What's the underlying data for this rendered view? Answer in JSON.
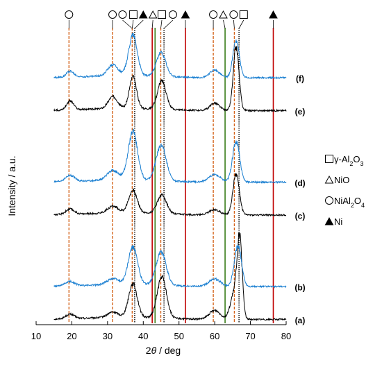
{
  "chart_data": {
    "type": "line",
    "title": "",
    "xlabel_parts": [
      "2",
      "θ",
      " / deg"
    ],
    "ylabel": "Intensity / a.u.",
    "xlim": [
      10,
      80
    ],
    "xticks": [
      10,
      20,
      30,
      40,
      50,
      60,
      70,
      80
    ],
    "series": [
      {
        "name": "(a)",
        "color": "#000000",
        "offset": 0.0,
        "peaks": [
          [
            19.5,
            0.06,
            1.2
          ],
          [
            31.5,
            0.07,
            1.5
          ],
          [
            37.1,
            0.45,
            1.2
          ],
          [
            45.2,
            0.55,
            1.3
          ],
          [
            60,
            0.12,
            1.5
          ],
          [
            65.5,
            0.35,
            1.1
          ],
          [
            67,
            1.0,
            0.7
          ]
        ]
      },
      {
        "name": "(b)",
        "color": "#1a7fd1",
        "offset": 0.11,
        "peaks": [
          [
            19.5,
            0.06,
            1.3
          ],
          [
            31.5,
            0.08,
            1.6
          ],
          [
            37.1,
            0.5,
            1.3
          ],
          [
            45.0,
            0.45,
            1.4
          ],
          [
            60,
            0.1,
            1.6
          ],
          [
            66.5,
            0.55,
            1.0
          ]
        ]
      },
      {
        "name": "(c)",
        "color": "#000000",
        "offset": 0.35,
        "peaks": [
          [
            19.5,
            0.07,
            1.2
          ],
          [
            31.5,
            0.09,
            1.5
          ],
          [
            37.1,
            0.3,
            1.2
          ],
          [
            45.2,
            0.25,
            1.3
          ],
          [
            60,
            0.07,
            1.5
          ],
          [
            66.0,
            0.55,
            0.9
          ]
        ]
      },
      {
        "name": "(d)",
        "color": "#1a7fd1",
        "offset": 0.46,
        "peaks": [
          [
            19.5,
            0.08,
            1.3
          ],
          [
            31.5,
            0.13,
            1.6
          ],
          [
            37.1,
            0.65,
            1.3
          ],
          [
            45.0,
            0.48,
            1.4
          ],
          [
            60,
            0.1,
            1.6
          ],
          [
            66.0,
            0.55,
            1.0
          ]
        ]
      },
      {
        "name": "(e)",
        "color": "#000000",
        "offset": 0.7,
        "peaks": [
          [
            19.5,
            0.12,
            1.0
          ],
          [
            31.5,
            0.16,
            1.3
          ],
          [
            37.1,
            0.42,
            1.0
          ],
          [
            45.2,
            0.38,
            1.2
          ],
          [
            60,
            0.1,
            1.3
          ],
          [
            66.0,
            0.85,
            0.8
          ]
        ]
      },
      {
        "name": "(f)",
        "color": "#1a7fd1",
        "offset": 0.81,
        "peaks": [
          [
            19.5,
            0.08,
            1.0
          ],
          [
            31.5,
            0.15,
            1.4
          ],
          [
            37.1,
            0.55,
            1.2
          ],
          [
            45.0,
            0.32,
            1.3
          ],
          [
            60,
            0.1,
            1.4
          ],
          [
            66.0,
            0.5,
            0.9
          ]
        ]
      }
    ],
    "reference_lines": [
      {
        "x": 19.2,
        "color": "#d4641c",
        "style": "dashed",
        "symbol": "circle"
      },
      {
        "x": 31.4,
        "color": "#d4641c",
        "style": "dashed",
        "symbol": "circle"
      },
      {
        "x": 36.9,
        "color": "#d4641c",
        "style": "dashed",
        "symbol": "circle"
      },
      {
        "x": 37.6,
        "color": "#000000",
        "style": "dotted",
        "symbol": "square"
      },
      {
        "x": 42.5,
        "color": "#c00000",
        "style": "solid",
        "symbol": "triangle-filled"
      },
      {
        "x": 43.3,
        "color": "#3a7d1a",
        "style": "solid",
        "symbol": "triangle"
      },
      {
        "x": 44.9,
        "color": "#d4641c",
        "style": "dashed",
        "symbol": "circle"
      },
      {
        "x": 45.8,
        "color": "#000000",
        "style": "dotted",
        "symbol": "square"
      },
      {
        "x": 51.8,
        "color": "#c00000",
        "style": "solid",
        "symbol": "triangle-filled"
      },
      {
        "x": 59.6,
        "color": "#d4641c",
        "style": "dashed",
        "symbol": "circle"
      },
      {
        "x": 62.9,
        "color": "#3a7d1a",
        "style": "solid",
        "symbol": "triangle"
      },
      {
        "x": 65.5,
        "color": "#d4641c",
        "style": "dashed",
        "symbol": "circle"
      },
      {
        "x": 66.8,
        "color": "#000000",
        "style": "dotted",
        "symbol": "square"
      },
      {
        "x": 76.4,
        "color": "#c00000",
        "style": "solid",
        "symbol": "triangle-filled"
      }
    ],
    "top_symbols": [
      {
        "x": 19.2,
        "symbol": "circle"
      },
      {
        "x": 31.4,
        "symbol": "circle"
      },
      {
        "x": 34.2,
        "symbol": "circle"
      },
      {
        "x": 37.2,
        "symbol": "square"
      },
      {
        "x": 40.0,
        "symbol": "triangle-filled"
      },
      {
        "x": 42.7,
        "symbol": "triangle"
      },
      {
        "x": 45.2,
        "symbol": "square"
      },
      {
        "x": 48.3,
        "symbol": "circle"
      },
      {
        "x": 51.8,
        "symbol": "triangle-filled"
      },
      {
        "x": 59.6,
        "symbol": "circle"
      },
      {
        "x": 62.4,
        "symbol": "triangle"
      },
      {
        "x": 65.3,
        "symbol": "circle"
      },
      {
        "x": 68.1,
        "symbol": "square"
      },
      {
        "x": 76.4,
        "symbol": "triangle-filled"
      }
    ],
    "legend": [
      {
        "symbol": "square",
        "parts": [
          "γ-Al",
          "2",
          "O",
          "3"
        ]
      },
      {
        "symbol": "triangle",
        "parts": [
          "NiO"
        ]
      },
      {
        "symbol": "circle",
        "parts": [
          "NiAl",
          "2",
          "O",
          "4"
        ]
      },
      {
        "symbol": "triangle-filled",
        "parts": [
          "Ni"
        ]
      }
    ],
    "grid": false,
    "legend_position": "right"
  }
}
